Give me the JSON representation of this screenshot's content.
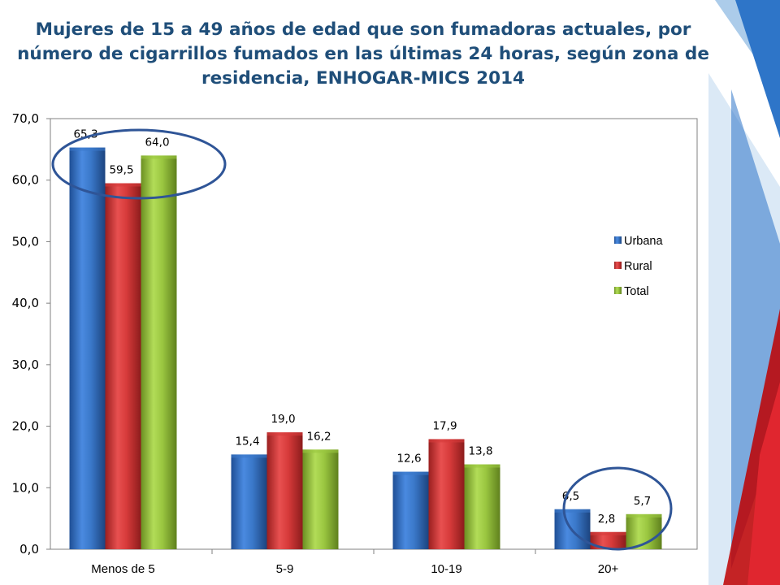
{
  "slide": {
    "title": "Mujeres de 15 a 49 años de edad que son fumadoras actuales, por número de cigarrillos fumados en las últimas 24 horas, según zona de residencia, ENHOGAR-MICS 2014"
  },
  "chart_data": {
    "type": "bar",
    "categories": [
      "Menos de 5",
      "5-9",
      "10-19",
      "20+"
    ],
    "series": [
      {
        "name": "Urbana",
        "values": [
          65.3,
          15.4,
          12.6,
          6.5
        ],
        "value_labels": [
          "65,3",
          "15,4",
          "12,6",
          "6,5"
        ],
        "color": "#3a78c9"
      },
      {
        "name": "Rural",
        "values": [
          59.5,
          19.0,
          17.9,
          2.8
        ],
        "value_labels": [
          "59,5",
          "19,0",
          "17,9",
          "2,8"
        ],
        "color": "#d63a3a"
      },
      {
        "name": "Total",
        "values": [
          64.0,
          16.2,
          13.8,
          5.7
        ],
        "value_labels": [
          "64,0",
          "16,2",
          "13,8",
          "5,7"
        ],
        "color": "#9ac640"
      }
    ],
    "ylim": [
      0,
      70
    ],
    "yticks": [
      0,
      10,
      20,
      30,
      40,
      50,
      60,
      70
    ],
    "ytick_labels": [
      "0,0",
      "10,0",
      "20,0",
      "30,0",
      "40,0",
      "50,0",
      "60,0",
      "70,0"
    ],
    "legend_position": "right",
    "grid": false,
    "highlight_circles_around": [
      "Menos de 5",
      "20+"
    ]
  }
}
